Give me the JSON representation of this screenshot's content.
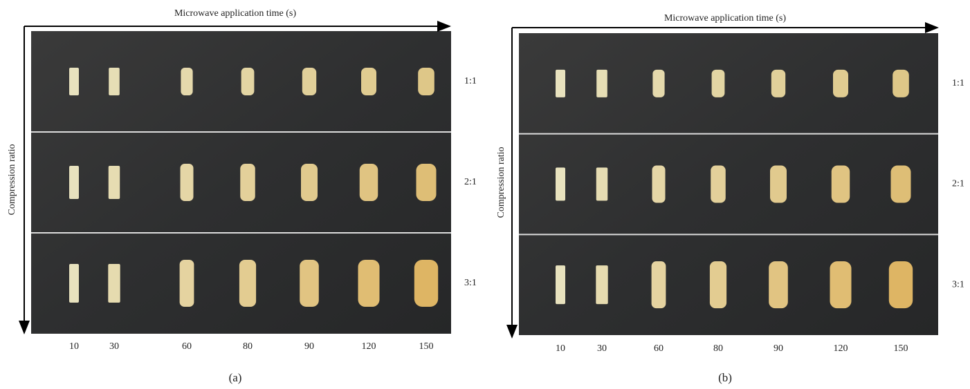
{
  "panels": [
    {
      "x_axis_title": "Microwave application time (s)",
      "y_axis_title": "Compression ratio",
      "rows": [
        "1:1",
        "2:1",
        "3:1"
      ],
      "columns": [
        "10",
        "30",
        "60",
        "80",
        "90",
        "120",
        "150"
      ],
      "label": "(a)"
    },
    {
      "x_axis_title": "Microwave application time (s)",
      "y_axis_title": "Compression ratio",
      "rows": [
        "1:1",
        "2:1",
        "3:1"
      ],
      "columns": [
        "10",
        "30",
        "60",
        "80",
        "90",
        "120",
        "150"
      ],
      "label": "(b)"
    }
  ]
}
